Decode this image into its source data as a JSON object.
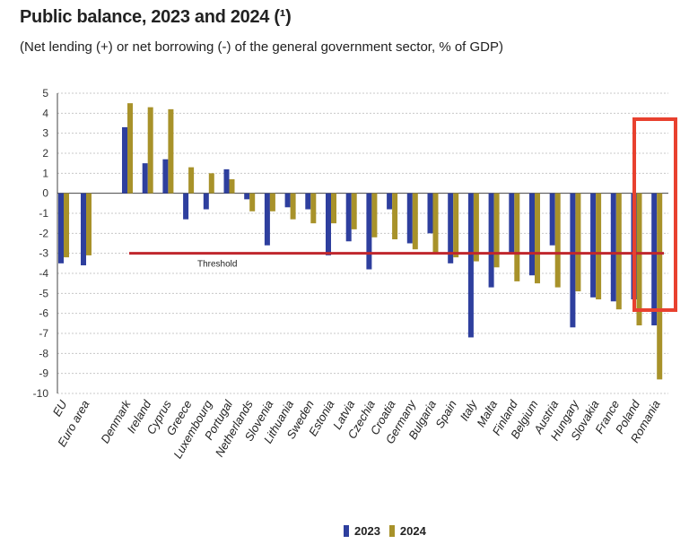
{
  "header": {
    "title": "Public balance, 2023 and 2024 (¹)",
    "subtitle": "(Net lending  (+) or net borrowing  (-) of the general government  sector, % of GDP)"
  },
  "colors": {
    "y2023": "#2e3f9e",
    "y2024": "#a8922a",
    "threshold": "#c0272d",
    "highlight": "#e8412f",
    "grid": "#c8c8c8"
  },
  "chart_data": {
    "type": "bar",
    "categories": [
      "EU",
      "Euro area",
      "Denmark",
      "Ireland",
      "Cyprus",
      "Greece",
      "Luxembourg",
      "Portugal",
      "Netherlands",
      "Slovenia",
      "Lithuania",
      "Sweden",
      "Estonia",
      "Latvia",
      "Czechia",
      "Croatia",
      "Germany",
      "Bulgaria",
      "Spain",
      "Italy",
      "Malta",
      "Finland",
      "Belgium",
      "Austria",
      "Hungary",
      "Slovakia",
      "France",
      "Poland",
      "Romania"
    ],
    "series": [
      {
        "name": "2023",
        "values": [
          -3.5,
          -3.6,
          3.3,
          1.5,
          1.7,
          -1.3,
          -0.8,
          1.2,
          -0.3,
          -2.6,
          -0.7,
          -0.8,
          -3.1,
          -2.4,
          -3.8,
          -0.8,
          -2.5,
          -2.0,
          -3.5,
          -7.2,
          -4.7,
          -3.0,
          -4.1,
          -2.6,
          -6.7,
          -5.2,
          -5.4,
          -5.3,
          -6.6
        ]
      },
      {
        "name": "2024",
        "values": [
          -3.2,
          -3.1,
          4.5,
          4.3,
          4.2,
          1.3,
          1.0,
          0.7,
          -0.9,
          -0.9,
          -1.3,
          -1.5,
          -1.5,
          -1.8,
          -2.2,
          -2.3,
          -2.8,
          -3.0,
          -3.2,
          -3.4,
          -3.7,
          -4.4,
          -4.5,
          -4.7,
          -4.9,
          -5.3,
          -5.8,
          -6.6,
          -9.3
        ]
      }
    ],
    "ylim": [
      -10,
      5
    ],
    "yticks": [
      5,
      4,
      3,
      2,
      1,
      0,
      -1,
      -2,
      -3,
      -4,
      -5,
      -6,
      -7,
      -8,
      -9,
      -10
    ],
    "threshold": {
      "value": -3,
      "label": "Threshold"
    },
    "legend": {
      "position": "bottom-center",
      "items": [
        "2023",
        "2024"
      ]
    },
    "grid": true,
    "highlight": [
      "Poland",
      "Romania"
    ]
  }
}
